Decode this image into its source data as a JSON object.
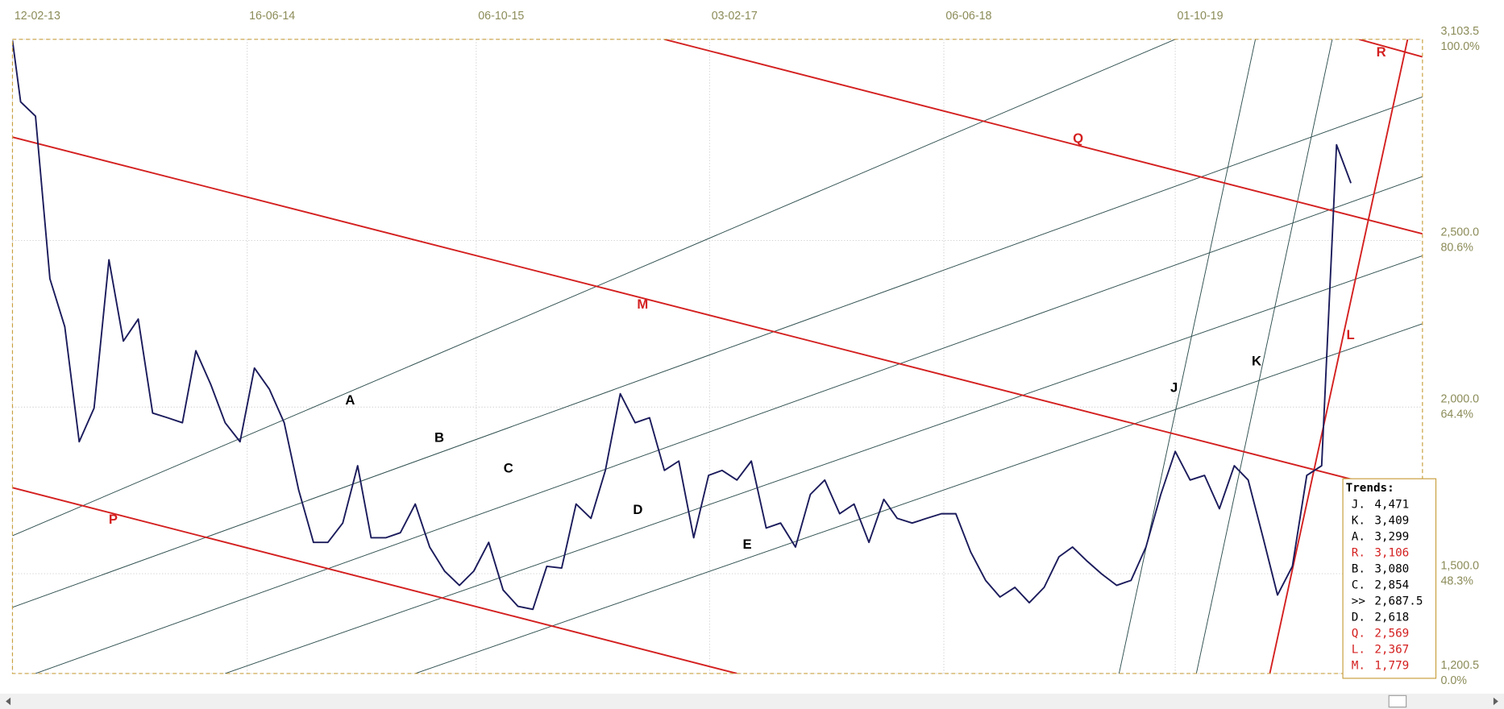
{
  "chart_data": {
    "type": "line",
    "x": [
      "12-02-13",
      "01-03-13",
      "01-04-13",
      "01-05-13",
      "01-06-13",
      "01-07-13",
      "01-08-13",
      "01-09-13",
      "01-10-13",
      "01-11-13",
      "01-12-13",
      "01-01-14",
      "01-02-14",
      "01-03-14",
      "01-04-14",
      "01-05-14",
      "01-06-14",
      "01-07-14",
      "01-08-14",
      "01-09-14",
      "01-10-14",
      "01-11-14",
      "01-12-14",
      "01-01-15",
      "01-02-15",
      "01-03-15",
      "01-04-15",
      "01-05-15",
      "01-06-15",
      "01-07-15",
      "01-08-15",
      "01-09-15",
      "01-10-15",
      "01-11-15",
      "01-12-15",
      "01-01-16",
      "01-02-16",
      "01-03-16",
      "01-04-16",
      "01-05-16",
      "01-06-16",
      "01-07-16",
      "01-08-16",
      "01-09-16",
      "01-10-16",
      "01-11-16",
      "01-12-16",
      "01-01-17",
      "01-02-17",
      "01-03-17",
      "01-04-17",
      "01-05-17",
      "01-06-17",
      "01-07-17",
      "01-08-17",
      "01-09-17",
      "01-10-17",
      "01-11-17",
      "01-12-17",
      "01-01-18",
      "01-02-18",
      "01-03-18",
      "01-04-18",
      "01-05-18",
      "01-06-18",
      "01-07-18",
      "01-08-18",
      "01-09-18",
      "01-10-18",
      "01-11-18",
      "01-12-18",
      "01-01-19",
      "01-02-19",
      "01-03-19",
      "01-04-19",
      "01-05-19",
      "01-06-19",
      "01-07-19",
      "01-08-19",
      "01-09-19",
      "01-10-19",
      "01-11-19",
      "01-12-19",
      "01-01-20",
      "01-02-20",
      "01-03-20",
      "01-04-20",
      "01-05-20",
      "01-06-20",
      "01-07-20",
      "01-08-20",
      "01-09-20",
      "01-10-20"
    ],
    "values": [
      3100,
      2916,
      2873,
      2385,
      2241,
      1896,
      1997,
      2442,
      2198,
      2264,
      1982,
      1968,
      1953,
      2169,
      2068,
      1953,
      1896,
      2117,
      2054,
      1953,
      1752,
      1594,
      1594,
      1652,
      1824,
      1608,
      1608,
      1623,
      1709,
      1580,
      1508,
      1465,
      1508,
      1594,
      1451,
      1402,
      1393,
      1522,
      1517,
      1709,
      1666,
      1810,
      2040,
      1953,
      1968,
      1810,
      1838,
      1608,
      1795,
      1810,
      1781,
      1838,
      1637,
      1652,
      1580,
      1738,
      1781,
      1680,
      1709,
      1594,
      1723,
      1666,
      1652,
      1666,
      1680,
      1680,
      1565,
      1480,
      1430,
      1459,
      1413,
      1459,
      1551,
      1580,
      1537,
      1499,
      1465,
      1480,
      1580,
      1738,
      1867,
      1781,
      1795,
      1695,
      1824,
      1781,
      1608,
      1436,
      1522,
      1795,
      1824,
      2787,
      2672
    ],
    "color": "#1b1b5c",
    "xlim": [
      "12-02-13",
      "27-02-21"
    ],
    "xticks": [
      "12-02-13",
      "16-06-14",
      "06-10-15",
      "03-02-17",
      "06-06-18",
      "01-10-19"
    ],
    "ylim": [
      1200.5,
      3103.5
    ],
    "yticks": [
      {
        "value": 1200.5,
        "label": "1,200.5"
      },
      {
        "value": 1500,
        "label": "1,500.0"
      },
      {
        "value": 2000,
        "label": "2,000.0"
      },
      {
        "value": 2500,
        "label": "2,500.0"
      },
      {
        "value": 3103.5,
        "label": "3,103.5"
      }
    ],
    "y_percent_labels": [
      "0.0%",
      "48.3%",
      "64.4%",
      "80.6%",
      "100.0%"
    ],
    "grid": true,
    "trend_lines": [
      {
        "label": "A",
        "color": "#2f4f4f",
        "x": [
          "12-02-13",
          "01-10-19"
        ],
        "values": [
          1614,
          3103.5
        ]
      },
      {
        "label": "B",
        "color": "#2f4f4f",
        "x": [
          "12-02-13",
          "27-02-21"
        ],
        "values": [
          1399,
          2931
        ]
      },
      {
        "label": "C",
        "color": "#2f4f4f",
        "x": [
          "01-04-13",
          "27-02-21"
        ],
        "values": [
          1200.5,
          2692
        ]
      },
      {
        "label": "D",
        "color": "#2f4f4f",
        "x": [
          "01-05-14",
          "27-02-21"
        ],
        "values": [
          1200.5,
          2454
        ]
      },
      {
        "label": "E",
        "color": "#2f4f4f",
        "x": [
          "01-06-15",
          "27-02-21"
        ],
        "values": [
          1200.5,
          2250
        ]
      },
      {
        "label": "J",
        "color": "#2f4f4f",
        "x": [
          "06-06-19",
          "16-03-20"
        ],
        "values": [
          1200.5,
          3103.5
        ]
      },
      {
        "label": "K",
        "color": "#2f4f4f",
        "x": [
          "14-11-19",
          "23-08-20"
        ],
        "values": [
          1200.5,
          3103.5
        ]
      },
      {
        "label": "L",
        "color": "#d42020",
        "x": [
          "15-04-20",
          "27-01-21"
        ],
        "values": [
          1200.5,
          3103.5
        ]
      },
      {
        "label": "M",
        "color": "#d42020",
        "x": [
          "12-02-13",
          "27-02-21"
        ],
        "values": [
          2810,
          1729
        ]
      },
      {
        "label": "P",
        "color": "#d42020",
        "x": [
          "12-02-13",
          "01-04-17"
        ],
        "values": [
          1758,
          1200.5
        ]
      },
      {
        "label": "Q",
        "color": "#d42020",
        "x": [
          "01-11-16",
          "27-02-21"
        ],
        "values": [
          3103.5,
          2520
        ]
      },
      {
        "label": "R",
        "color": "#d42020",
        "x": [
          "18-10-20",
          "27-02-21"
        ],
        "values": [
          3103.5,
          3051
        ]
      }
    ],
    "trends_box": {
      "title": "Trends:",
      "items": [
        {
          "name": "J.",
          "value": "4,471",
          "color": "#000000"
        },
        {
          "name": "K.",
          "value": "3,409",
          "color": "#000000"
        },
        {
          "name": "A.",
          "value": "3,299",
          "color": "#000000"
        },
        {
          "name": "R.",
          "value": "3,106",
          "color": "#d42020"
        },
        {
          "name": "B.",
          "value": "3,080",
          "color": "#000000"
        },
        {
          "name": "C.",
          "value": "2,854",
          "color": "#000000"
        },
        {
          "name": ">>",
          "value": "2,687.5",
          "color": "#000000"
        },
        {
          "name": "D.",
          "value": "2,618",
          "color": "#000000"
        },
        {
          "name": "Q.",
          "value": "2,569",
          "color": "#d42020"
        },
        {
          "name": "L.",
          "value": "2,367",
          "color": "#d42020"
        },
        {
          "name": "M.",
          "value": "1,779",
          "color": "#d42020"
        }
      ]
    }
  }
}
